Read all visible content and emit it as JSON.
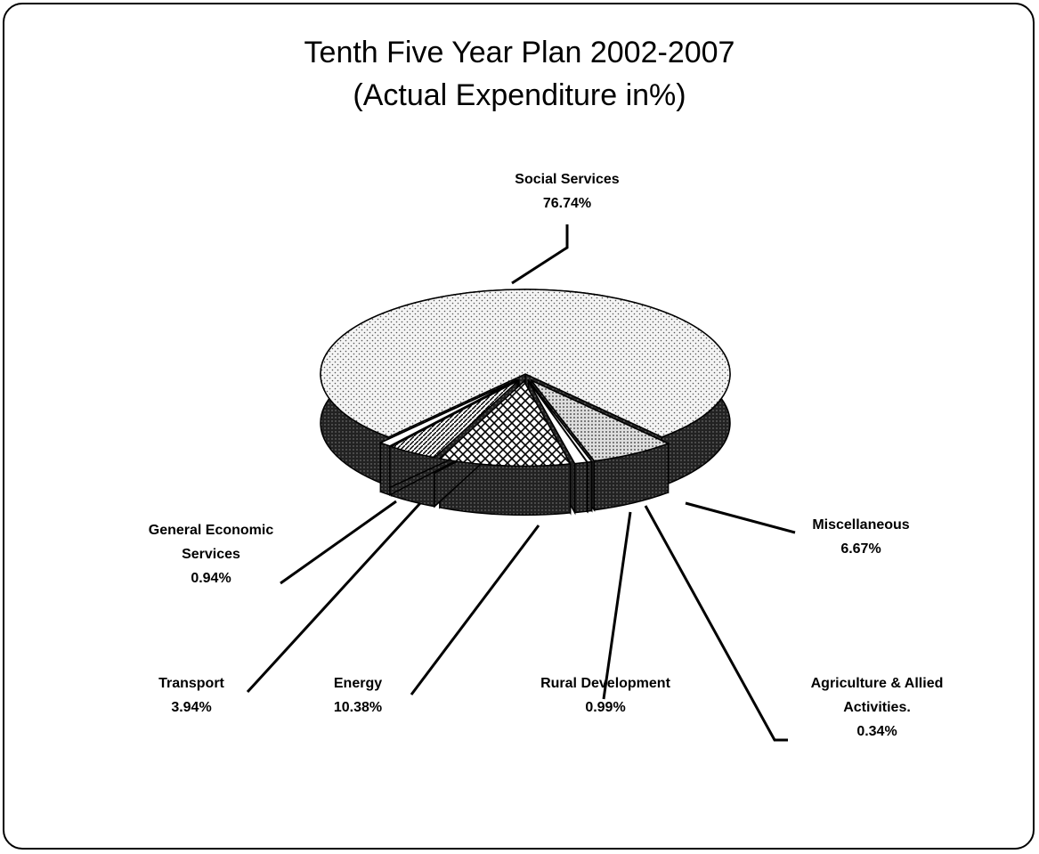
{
  "chart_data": {
    "type": "pie",
    "title": "Tenth Five Year Plan 2002-2007",
    "subtitle": "(Actual Expenditure in%)",
    "categories": [
      "Social Services",
      "Miscellaneous",
      "Agriculture & Allied Activities.",
      "Rural Development",
      "Energy",
      "Transport",
      "General Economic Services"
    ],
    "values": [
      76.74,
      6.67,
      0.34,
      0.99,
      10.38,
      3.94,
      0.94
    ],
    "value_labels": [
      "76.74%",
      "6.67%",
      "0.34%",
      "0.99%",
      "10.38%",
      "3.94%",
      "0.94%"
    ]
  }
}
